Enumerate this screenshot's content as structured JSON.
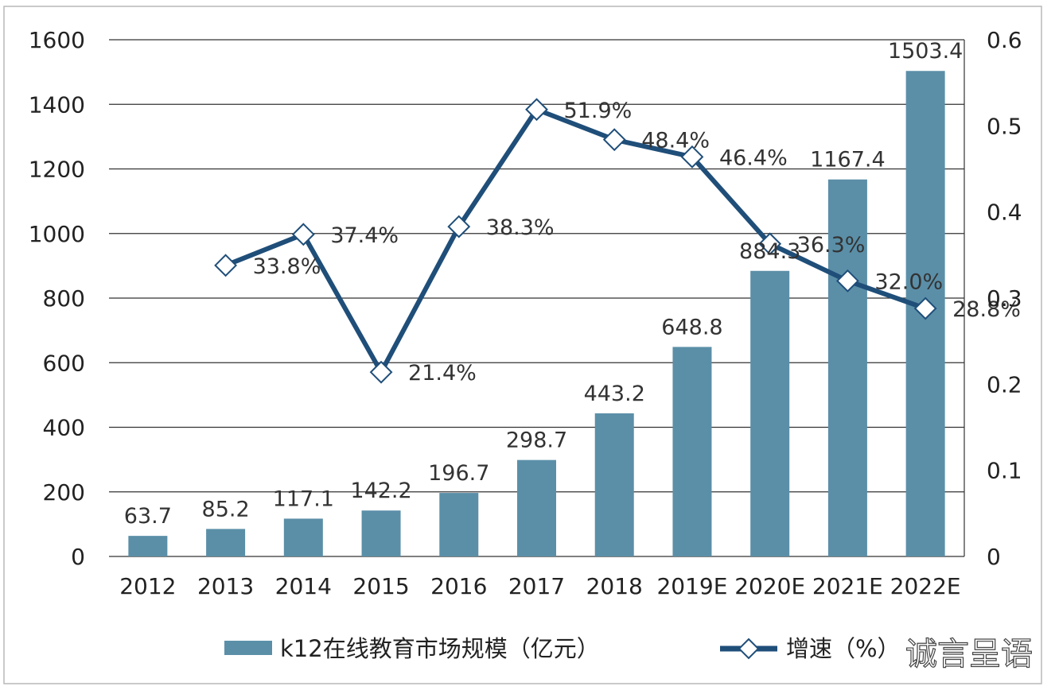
{
  "chart_data": {
    "type": "bar",
    "categories": [
      "2012",
      "2013",
      "2014",
      "2015",
      "2016",
      "2017",
      "2018",
      "2019E",
      "2020E",
      "2021E",
      "2022E"
    ],
    "series": [
      {
        "name": "k12在线教育市场规模（亿元）",
        "type": "bar",
        "axis": "left",
        "values": [
          63.7,
          85.2,
          117.1,
          142.2,
          196.7,
          298.7,
          443.2,
          648.8,
          884.3,
          1167.4,
          1503.4
        ],
        "labels": [
          "63.7",
          "85.2",
          "117.1",
          "142.2",
          "196.7",
          "298.7",
          "443.2",
          "648.8",
          "884.3",
          "1167.4",
          "1503.4"
        ],
        "color": "#5b8fa8"
      },
      {
        "name": "增速（%）",
        "type": "line",
        "axis": "right",
        "marker": "diamond",
        "values": [
          null,
          0.338,
          0.374,
          0.214,
          0.383,
          0.519,
          0.484,
          0.464,
          0.363,
          0.32,
          0.288
        ],
        "labels": [
          "",
          "33.8%",
          "37.4%",
          "21.4%",
          "38.3%",
          "51.9%",
          "48.4%",
          "46.4%",
          "36.3%",
          "32.0%",
          "28.8%"
        ],
        "color": "#1f4e79"
      }
    ],
    "y_left": {
      "ylim": [
        0,
        1600
      ],
      "ticks": [
        "0",
        "200",
        "400",
        "600",
        "800",
        "1000",
        "1200",
        "1400",
        "1600"
      ]
    },
    "y_right": {
      "ylim": [
        0,
        0.6
      ],
      "ticks": [
        "0",
        "0.1",
        "0.2",
        "0.3",
        "0.4",
        "0.5",
        "0.6"
      ]
    },
    "grid": true,
    "legend_position": "bottom"
  },
  "watermark": "诚言呈语"
}
